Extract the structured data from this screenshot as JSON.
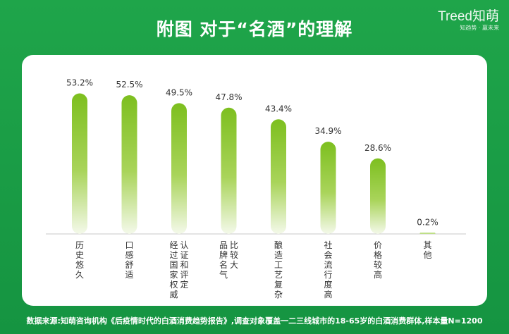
{
  "page": {
    "title": "附图  对于“名酒”的理解",
    "logo_main": "Treed知萌",
    "logo_sub": "知趋势 · 赢未来",
    "source_note": "数据来源:知萌咨询机构《后疫情时代的白酒消费趋势报告》,调查对象覆盖一二三线城市的18-65岁的白酒消费群体,样本量N=1200"
  },
  "colors": {
    "background": "#1a9a44",
    "bar_top": "#7dbf1f",
    "bar_bottom": "#f4f9ea",
    "axis": "#c8c8c8",
    "text": "#333333"
  },
  "chart_data": {
    "type": "bar",
    "categories": [
      "历史悠久",
      "口感舒适",
      "经过国家权威认证和评定",
      "品牌名气比较大",
      "酿造工艺复杂",
      "社会流行度高",
      "价格较高",
      "其他"
    ],
    "category_lines": [
      [
        "历史悠久"
      ],
      [
        "口感舒适"
      ],
      [
        "经过国家权威",
        "认证和评定"
      ],
      [
        "品牌名气",
        "比较大"
      ],
      [
        "酿造工艺复杂"
      ],
      [
        "社会流行度高"
      ],
      [
        "价格较高"
      ],
      [
        "其他"
      ]
    ],
    "values": [
      53.2,
      52.5,
      49.5,
      47.8,
      43.4,
      34.9,
      28.6,
      0.2
    ],
    "value_labels": [
      "53.2%",
      "52.5%",
      "49.5%",
      "47.8%",
      "43.4%",
      "34.9%",
      "28.6%",
      "0.2%"
    ],
    "ylim": [
      0,
      60
    ],
    "grid": false,
    "legend": "none"
  }
}
